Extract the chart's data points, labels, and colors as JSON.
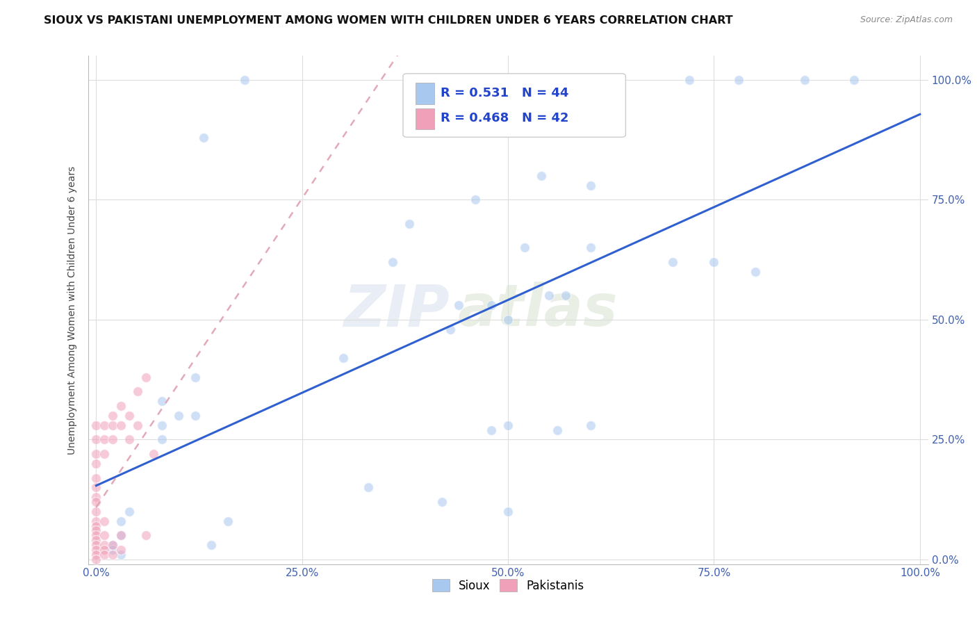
{
  "title": "SIOUX VS PAKISTANI UNEMPLOYMENT AMONG WOMEN WITH CHILDREN UNDER 6 YEARS CORRELATION CHART",
  "source": "Source: ZipAtlas.com",
  "ylabel": "Unemployment Among Women with Children Under 6 years",
  "watermark_line1": "ZIP",
  "watermark_line2": "atlas",
  "legend_sioux_R": "R = 0.531",
  "legend_sioux_N": "N = 44",
  "legend_pak_R": "R = 0.468",
  "legend_pak_N": "N = 42",
  "sioux_color": "#a8c8f0",
  "pak_color": "#f0a0b8",
  "trend_sioux_color": "#3060d0",
  "trend_pak_color": "#e0a0b0",
  "sioux_scatter": [
    [
      0.18,
      1.0
    ],
    [
      0.72,
      1.0
    ],
    [
      0.78,
      1.0
    ],
    [
      0.86,
      1.0
    ],
    [
      0.92,
      1.0
    ],
    [
      0.13,
      0.88
    ],
    [
      0.54,
      0.8
    ],
    [
      0.6,
      0.78
    ],
    [
      0.46,
      0.75
    ],
    [
      0.38,
      0.7
    ],
    [
      0.52,
      0.65
    ],
    [
      0.6,
      0.65
    ],
    [
      0.36,
      0.62
    ],
    [
      0.7,
      0.62
    ],
    [
      0.75,
      0.62
    ],
    [
      0.8,
      0.6
    ],
    [
      0.55,
      0.55
    ],
    [
      0.57,
      0.55
    ],
    [
      0.44,
      0.53
    ],
    [
      0.48,
      0.53
    ],
    [
      0.5,
      0.5
    ],
    [
      0.43,
      0.48
    ],
    [
      0.3,
      0.42
    ],
    [
      0.12,
      0.38
    ],
    [
      0.08,
      0.33
    ],
    [
      0.1,
      0.3
    ],
    [
      0.12,
      0.3
    ],
    [
      0.08,
      0.28
    ],
    [
      0.5,
      0.28
    ],
    [
      0.6,
      0.28
    ],
    [
      0.48,
      0.27
    ],
    [
      0.56,
      0.27
    ],
    [
      0.08,
      0.25
    ],
    [
      0.33,
      0.15
    ],
    [
      0.04,
      0.1
    ],
    [
      0.03,
      0.08
    ],
    [
      0.16,
      0.08
    ],
    [
      0.03,
      0.05
    ],
    [
      0.02,
      0.03
    ],
    [
      0.02,
      0.02
    ],
    [
      0.03,
      0.01
    ],
    [
      0.42,
      0.12
    ],
    [
      0.5,
      0.1
    ],
    [
      0.14,
      0.03
    ]
  ],
  "pak_scatter": [
    [
      0.0,
      0.28
    ],
    [
      0.0,
      0.25
    ],
    [
      0.0,
      0.22
    ],
    [
      0.0,
      0.2
    ],
    [
      0.0,
      0.17
    ],
    [
      0.0,
      0.15
    ],
    [
      0.0,
      0.13
    ],
    [
      0.0,
      0.12
    ],
    [
      0.0,
      0.1
    ],
    [
      0.0,
      0.08
    ],
    [
      0.0,
      0.07
    ],
    [
      0.0,
      0.06
    ],
    [
      0.0,
      0.05
    ],
    [
      0.0,
      0.04
    ],
    [
      0.0,
      0.03
    ],
    [
      0.0,
      0.02
    ],
    [
      0.0,
      0.01
    ],
    [
      0.0,
      0.0
    ],
    [
      0.01,
      0.28
    ],
    [
      0.01,
      0.25
    ],
    [
      0.01,
      0.22
    ],
    [
      0.01,
      0.08
    ],
    [
      0.01,
      0.05
    ],
    [
      0.01,
      0.03
    ],
    [
      0.01,
      0.02
    ],
    [
      0.01,
      0.01
    ],
    [
      0.02,
      0.3
    ],
    [
      0.02,
      0.28
    ],
    [
      0.02,
      0.25
    ],
    [
      0.02,
      0.03
    ],
    [
      0.02,
      0.01
    ],
    [
      0.03,
      0.32
    ],
    [
      0.03,
      0.28
    ],
    [
      0.03,
      0.05
    ],
    [
      0.03,
      0.02
    ],
    [
      0.04,
      0.3
    ],
    [
      0.04,
      0.25
    ],
    [
      0.05,
      0.35
    ],
    [
      0.05,
      0.28
    ],
    [
      0.06,
      0.38
    ],
    [
      0.06,
      0.05
    ],
    [
      0.07,
      0.22
    ]
  ],
  "xlim": [
    -0.01,
    1.01
  ],
  "ylim": [
    -0.01,
    1.05
  ],
  "xticks": [
    0.0,
    0.25,
    0.5,
    0.75,
    1.0
  ],
  "yticks": [
    0.0,
    0.25,
    0.5,
    0.75,
    1.0
  ],
  "xticklabels": [
    "0.0%",
    "25.0%",
    "50.0%",
    "75.0%",
    "100.0%"
  ],
  "yticklabels_left": [
    "",
    "",
    "",
    "",
    ""
  ],
  "yticklabels_right": [
    "0.0%",
    "25.0%",
    "50.0%",
    "75.0%",
    "100.0%"
  ],
  "background_color": "#ffffff",
  "grid_color": "#dddddd",
  "marker_size": 100,
  "marker_alpha": 0.55,
  "marker_edge_color": "#ffffff",
  "marker_edge_width": 1.0
}
